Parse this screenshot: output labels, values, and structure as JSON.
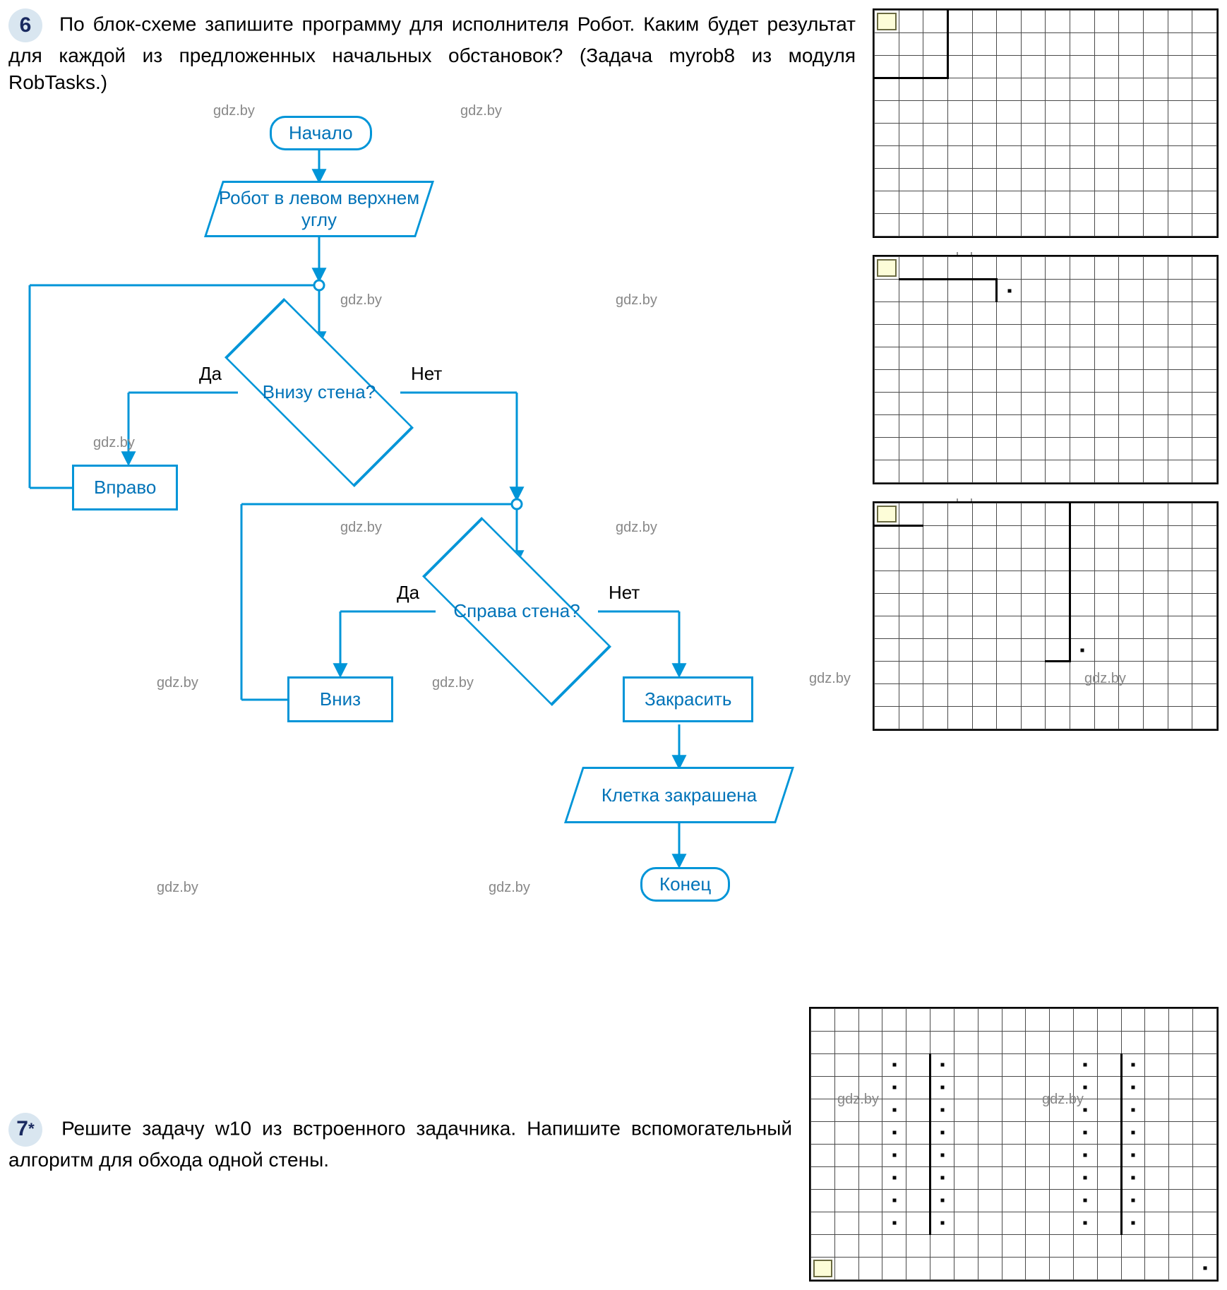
{
  "task6": {
    "number": "6",
    "text": "По блок-схеме запишите программу для исполнителя Робот. Каким будет результат для каждой из предложенных начальных обстановок? (Задача myrob8 из модуля RobTasks.)"
  },
  "task7": {
    "number": "7",
    "star": "*",
    "text": "Решите задачу w10 из встроенного задачника. Напишите вспомогательный алгоритм для обхода одной стены."
  },
  "flow": {
    "start": "Начало",
    "io_top": "Робот в левом верхнем углу",
    "cond1": "Внизу стена?",
    "cond2": "Справа стена?",
    "proc_right": "Вправо",
    "proc_down": "Вниз",
    "proc_paint": "Закрасить",
    "io_bottom": "Клетка закрашена",
    "end": "Конец",
    "yes": "Да",
    "no": "Нет"
  },
  "grids": {
    "g1": {
      "rows": 10,
      "cols": 14,
      "start": [
        0,
        0
      ],
      "walls_v": [
        [
          0,
          2
        ],
        [
          1,
          2
        ],
        [
          2,
          2
        ]
      ],
      "walls_h": [
        [
          2,
          0
        ],
        [
          2,
          1
        ],
        [
          2,
          2
        ]
      ],
      "dots": []
    },
    "g2": {
      "rows": 10,
      "cols": 14,
      "start": [
        0,
        0
      ],
      "walls_v": [
        [
          1,
          4
        ]
      ],
      "walls_h": [
        [
          0,
          1
        ],
        [
          0,
          2
        ],
        [
          0,
          3
        ],
        [
          0,
          4
        ]
      ],
      "dots": [
        [
          1,
          5
        ]
      ]
    },
    "g3": {
      "rows": 10,
      "cols": 14,
      "start": [
        0,
        0
      ],
      "walls_v": [
        [
          0,
          7
        ],
        [
          1,
          7
        ],
        [
          2,
          7
        ],
        [
          3,
          7
        ],
        [
          4,
          7
        ],
        [
          5,
          7
        ],
        [
          6,
          7
        ]
      ],
      "walls_h": [
        [
          0,
          0
        ],
        [
          0,
          1
        ],
        [
          6,
          7
        ]
      ],
      "dots": [
        [
          6,
          8
        ]
      ]
    },
    "g4": {
      "rows": 12,
      "cols": 17,
      "start": [
        11,
        0
      ],
      "walls_v": [
        [
          2,
          4
        ],
        [
          3,
          4
        ],
        [
          4,
          4
        ],
        [
          5,
          4
        ],
        [
          6,
          4
        ],
        [
          7,
          4
        ],
        [
          8,
          4
        ],
        [
          9,
          4
        ],
        [
          2,
          12
        ],
        [
          3,
          12
        ],
        [
          4,
          12
        ],
        [
          5,
          12
        ],
        [
          6,
          12
        ],
        [
          7,
          12
        ],
        [
          8,
          12
        ],
        [
          9,
          12
        ]
      ],
      "walls_h": [],
      "dots": [
        [
          2,
          3
        ],
        [
          2,
          5
        ],
        [
          2,
          11
        ],
        [
          2,
          13
        ],
        [
          3,
          3
        ],
        [
          3,
          5
        ],
        [
          3,
          11
        ],
        [
          3,
          13
        ],
        [
          4,
          3
        ],
        [
          4,
          5
        ],
        [
          4,
          11
        ],
        [
          4,
          13
        ],
        [
          5,
          3
        ],
        [
          5,
          5
        ],
        [
          5,
          11
        ],
        [
          5,
          13
        ],
        [
          6,
          3
        ],
        [
          6,
          5
        ],
        [
          6,
          11
        ],
        [
          6,
          13
        ],
        [
          7,
          3
        ],
        [
          7,
          5
        ],
        [
          7,
          11
        ],
        [
          7,
          13
        ],
        [
          8,
          3
        ],
        [
          8,
          5
        ],
        [
          8,
          11
        ],
        [
          8,
          13
        ],
        [
          9,
          3
        ],
        [
          9,
          5
        ],
        [
          9,
          11
        ],
        [
          9,
          13
        ],
        [
          11,
          16
        ]
      ]
    }
  },
  "watermark": "gdz.by",
  "colors": {
    "flow_stroke": "#0095d8",
    "flow_text": "#0073b8",
    "badge_bg": "#d9e6f0",
    "badge_fg": "#1a2a60",
    "grid_border": "#000000",
    "grid_line": "#4a4a4a",
    "start_fill": "#fdfdd8",
    "start_border": "#6a6a40",
    "watermark": "#888888"
  }
}
